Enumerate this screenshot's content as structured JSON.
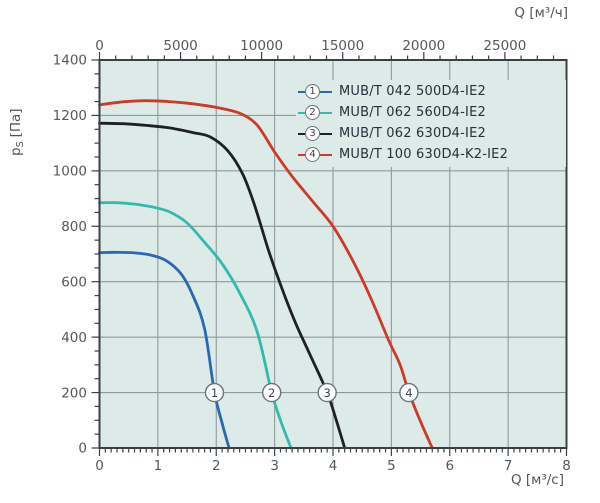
{
  "colors": {
    "plot_bg": "#dceae8",
    "grid": "#8e9a97",
    "frame": "#3a4145",
    "tick": "#3a4145",
    "tick_label": "#53595e",
    "legend_text": "#273039",
    "marker_border": "#6b7276",
    "marker_text": "#3c454c",
    "series_blue": "#2b68af",
    "series_cyan": "#35b9ad",
    "series_black": "#1f2022",
    "series_red": "#cd392b"
  },
  "chart_data": {
    "type": "line",
    "title": "",
    "x_bottom": {
      "label": "Q [м³/с]",
      "min": 0,
      "max": 8,
      "major_step": 1,
      "minor_step": 0.1,
      "tick_labels": [
        "0",
        "1",
        "2",
        "3",
        "4",
        "5",
        "6",
        "7",
        "8"
      ]
    },
    "x_top": {
      "label": "Q [м³/ч]",
      "min": 0,
      "max": 28800,
      "major_step": 5000,
      "minor_step": 1000,
      "tick_labels": [
        "0",
        "5000",
        "10000",
        "15000",
        "20000",
        "25000"
      ]
    },
    "y": {
      "label_main": "p",
      "label_sub": "S",
      "label_unit": "[Па]",
      "min": 0,
      "max": 1400,
      "major_step": 200,
      "minor_step": 50,
      "tick_labels": [
        "0",
        "200",
        "400",
        "600",
        "800",
        "1000",
        "1200",
        "1400"
      ]
    },
    "grid": {
      "vertical_at": [
        1,
        2,
        3,
        4,
        5,
        6,
        7
      ],
      "horizontal_at": [
        200,
        400,
        600,
        800,
        1000,
        1200
      ]
    },
    "legend_position": "top-right",
    "marker_pressure": 200,
    "series": [
      {
        "id": "1",
        "label": "MUB/T 042 500D4-IE2",
        "color": "#2b68af",
        "marker_q": 1.97,
        "points": [
          [
            0,
            705
          ],
          [
            0.3,
            706
          ],
          [
            0.6,
            704
          ],
          [
            0.9,
            695
          ],
          [
            1.15,
            675
          ],
          [
            1.4,
            628
          ],
          [
            1.6,
            550
          ],
          [
            1.8,
            430
          ],
          [
            1.97,
            200
          ],
          [
            2.1,
            90
          ],
          [
            2.22,
            0
          ]
        ]
      },
      {
        "id": "2",
        "label": "MUB/T 062 560D4-IE2",
        "color": "#35b9ad",
        "marker_q": 2.95,
        "points": [
          [
            0,
            885
          ],
          [
            0.3,
            885
          ],
          [
            0.6,
            880
          ],
          [
            0.9,
            870
          ],
          [
            1.2,
            852
          ],
          [
            1.5,
            812
          ],
          [
            1.8,
            742
          ],
          [
            2.1,
            665
          ],
          [
            2.4,
            560
          ],
          [
            2.7,
            420
          ],
          [
            2.95,
            200
          ],
          [
            3.1,
            100
          ],
          [
            3.28,
            0
          ]
        ]
      },
      {
        "id": "3",
        "label": "MUB/T 062 630D4-IE2",
        "color": "#1f2022",
        "marker_q": 3.9,
        "points": [
          [
            0,
            1172
          ],
          [
            0.4,
            1170
          ],
          [
            0.8,
            1164
          ],
          [
            1.2,
            1155
          ],
          [
            1.6,
            1138
          ],
          [
            1.9,
            1122
          ],
          [
            2.2,
            1072
          ],
          [
            2.45,
            990
          ],
          [
            2.65,
            880
          ],
          [
            2.9,
            710
          ],
          [
            3.1,
            590
          ],
          [
            3.35,
            455
          ],
          [
            3.6,
            340
          ],
          [
            3.9,
            200
          ],
          [
            4.05,
            105
          ],
          [
            4.2,
            0
          ]
        ]
      },
      {
        "id": "4",
        "label": "MUB/T 100 630D4-K2-IE2",
        "color": "#cd392b",
        "marker_q": 5.3,
        "points": [
          [
            0,
            1238
          ],
          [
            0.4,
            1249
          ],
          [
            0.8,
            1253
          ],
          [
            1.2,
            1250
          ],
          [
            1.6,
            1242
          ],
          [
            2.0,
            1229
          ],
          [
            2.4,
            1208
          ],
          [
            2.7,
            1165
          ],
          [
            3.0,
            1068
          ],
          [
            3.3,
            980
          ],
          [
            3.65,
            890
          ],
          [
            4.0,
            800
          ],
          [
            4.35,
            672
          ],
          [
            4.65,
            540
          ],
          [
            4.95,
            390
          ],
          [
            5.15,
            300
          ],
          [
            5.3,
            200
          ],
          [
            5.5,
            95
          ],
          [
            5.7,
            0
          ]
        ]
      }
    ]
  }
}
